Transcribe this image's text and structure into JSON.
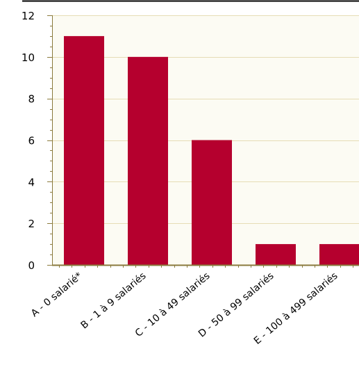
{
  "chart_data": {
    "type": "bar",
    "categories": [
      "A - 0 salarié*",
      "B - 1 à 9 salariés",
      "C - 10 à 49 salariés",
      "D - 50 à 99 salariés",
      "E - 100 à 499 salariés"
    ],
    "values": [
      11,
      10,
      6,
      1,
      1
    ],
    "ylim": [
      0,
      12
    ],
    "yticks": [
      "0",
      "2",
      "4",
      "6",
      "8",
      "10",
      "12"
    ],
    "grid": true,
    "colors": {
      "bar": "#b5002e",
      "plot_background": "#fcfbf3",
      "gridline": "#e6dcb5",
      "axis": "#8a7a3c",
      "top_rule": "#000000"
    }
  }
}
